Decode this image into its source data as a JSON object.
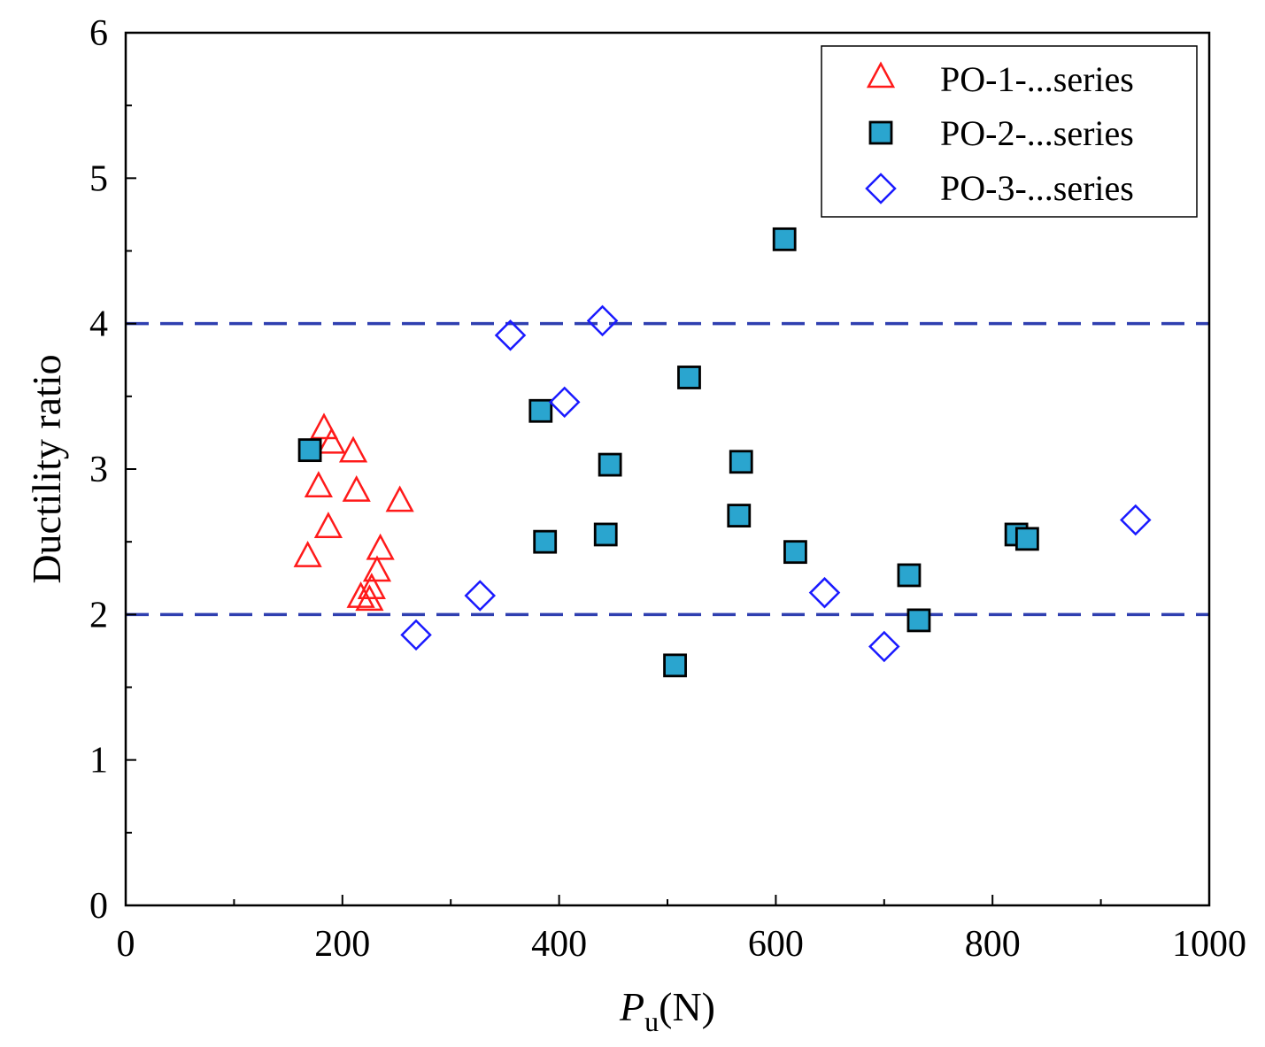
{
  "chart_data": {
    "type": "scatter",
    "title": "",
    "xlabel": {
      "main": "P",
      "sub": "u",
      "unit": "(N)"
    },
    "ylabel": "Ductility ratio",
    "xlim": [
      0,
      1000
    ],
    "ylim": [
      0,
      6
    ],
    "x_ticks": [
      0,
      200,
      400,
      600,
      800,
      1000
    ],
    "y_ticks": [
      0,
      1,
      2,
      3,
      4,
      5,
      6
    ],
    "grid": false,
    "legend_position": "top-right",
    "reference_lines": [
      {
        "y": 4,
        "style": "dashed",
        "color": "#2f3fb0"
      },
      {
        "y": 2,
        "style": "dashed",
        "color": "#2f3fb0"
      }
    ],
    "series": [
      {
        "name": "PO-1-...series",
        "marker": "triangle-open",
        "color": "#ff1a1a",
        "points": [
          [
            183,
            3.28
          ],
          [
            190,
            3.18
          ],
          [
            210,
            3.12
          ],
          [
            178,
            2.88
          ],
          [
            213,
            2.85
          ],
          [
            253,
            2.78
          ],
          [
            187,
            2.6
          ],
          [
            235,
            2.45
          ],
          [
            168,
            2.4
          ],
          [
            232,
            2.3
          ],
          [
            227,
            2.18
          ],
          [
            217,
            2.12
          ],
          [
            225,
            2.1
          ]
        ]
      },
      {
        "name": "PO-2-...series",
        "marker": "square-filled",
        "color": "#2aa5cf",
        "edge": "#000000",
        "points": [
          [
            170,
            3.13
          ],
          [
            383,
            3.4
          ],
          [
            387,
            2.5
          ],
          [
            447,
            3.03
          ],
          [
            443,
            2.55
          ],
          [
            520,
            3.63
          ],
          [
            507,
            1.65
          ],
          [
            568,
            3.05
          ],
          [
            566,
            2.68
          ],
          [
            608,
            4.58
          ],
          [
            618,
            2.43
          ],
          [
            723,
            2.27
          ],
          [
            732,
            1.96
          ],
          [
            822,
            2.55
          ],
          [
            832,
            2.52
          ]
        ]
      },
      {
        "name": "PO-3-...series",
        "marker": "diamond-open",
        "color": "#1a1aff",
        "points": [
          [
            355,
            3.92
          ],
          [
            440,
            4.02
          ],
          [
            405,
            3.46
          ],
          [
            327,
            2.13
          ],
          [
            268,
            1.86
          ],
          [
            645,
            2.15
          ],
          [
            700,
            1.78
          ],
          [
            932,
            2.65
          ]
        ]
      }
    ]
  }
}
